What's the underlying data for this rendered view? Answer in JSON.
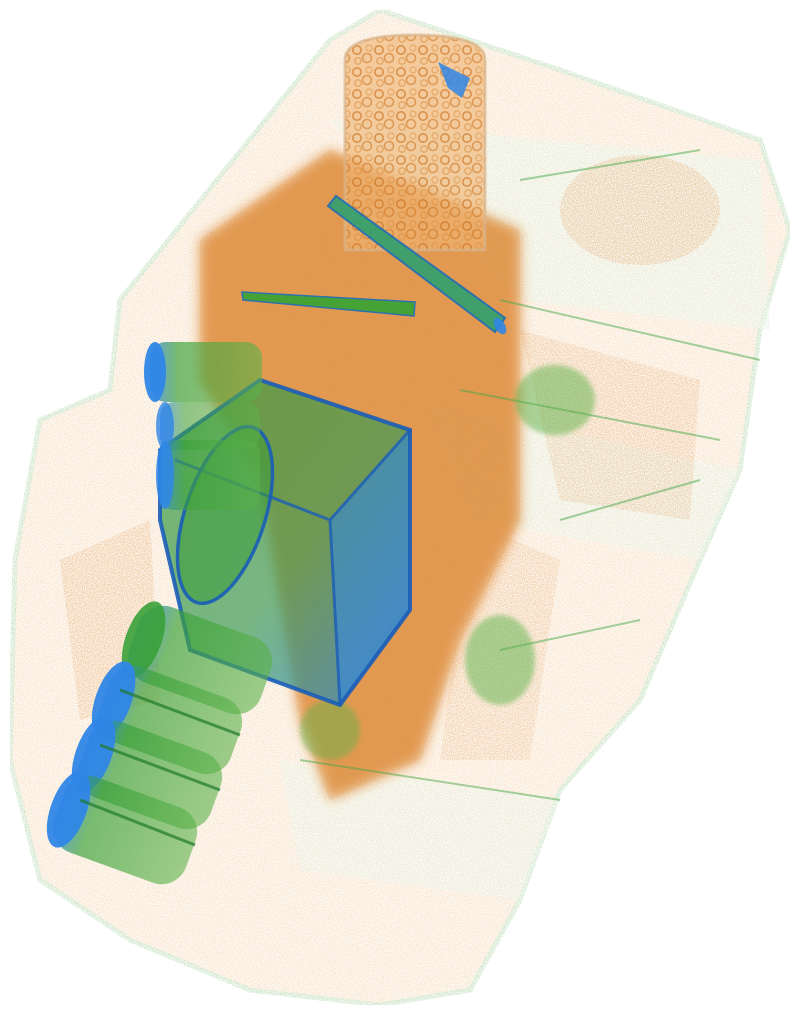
{
  "image": {
    "subject": "3d-ct-volume-rendering",
    "background": "#ffffff",
    "colors": {
      "low_density": "#e9a25a",
      "low_density_dense": "#d7791f",
      "medium_density": "#35a534",
      "medium_density_dark": "#1f7a2a",
      "high_density": "#2f86e6",
      "high_density_dark": "#1a5db8",
      "shell_tint": "#cfe6c7"
    },
    "objects": [
      "bag-shell",
      "cylindrical-container",
      "rod-pair",
      "box-object",
      "cylinder-stack"
    ]
  }
}
